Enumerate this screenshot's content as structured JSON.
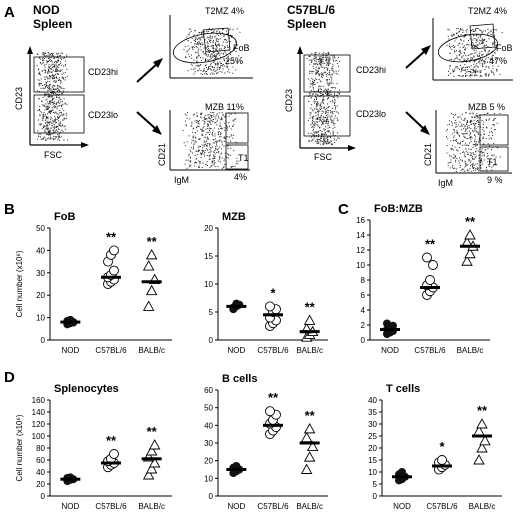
{
  "panels": {
    "A": "A",
    "B": "B",
    "C": "C",
    "D": "D"
  },
  "flow": [
    {
      "title1": "NOD",
      "title2": "Spleen",
      "gate_hi": "CD23hi",
      "gate_lo": "CD23lo",
      "x_axis": "FSC",
      "y_axis": "CD23",
      "top_plot": {
        "label1": "T2MZ 4%",
        "label2": "FoB",
        "label3": "25%"
      },
      "bottom_plot": {
        "label1": "MZB 11%",
        "label2": "T1",
        "label3": "4%",
        "x_axis": "IgM",
        "y_axis": "CD21"
      }
    },
    {
      "title1": "C57BL/6",
      "title2": "Spleen",
      "gate_hi": "CD23hi",
      "gate_lo": "CD23lo",
      "x_axis": "FSC",
      "y_axis": "CD23",
      "top_plot": {
        "label1": "T2MZ 4%",
        "label2": "FoB",
        "label3": "47%"
      },
      "bottom_plot": {
        "label1": "MZB 5 %",
        "label2": "T1",
        "label3": "9 %",
        "x_axis": "IgM",
        "y_axis": "CD21"
      }
    }
  ],
  "chart_data": [
    {
      "type": "scatter",
      "panel": "B",
      "title": "FoB",
      "ylabel": "Cell number (x10⁶)",
      "categories": [
        "NOD",
        "C57BL/6",
        "BALB/c"
      ],
      "ylim": [
        0,
        50
      ],
      "yticks": [
        0,
        10,
        20,
        30,
        40,
        50
      ],
      "means": [
        8,
        28,
        26
      ],
      "points": [
        [
          7,
          7.5,
          8,
          8.5,
          9,
          7.8
        ],
        [
          25,
          26,
          27,
          28,
          29,
          31,
          35,
          38,
          40
        ],
        [
          15,
          22,
          27,
          33,
          38
        ]
      ],
      "markers": [
        "filled",
        "circle",
        "triangle"
      ],
      "significance": [
        "",
        "**",
        "**"
      ]
    },
    {
      "type": "scatter",
      "panel": "B",
      "title": "MZB",
      "categories": [
        "NOD",
        "C57BL/6",
        "BALB/c"
      ],
      "ylim": [
        0,
        20
      ],
      "yticks": [
        0,
        5,
        10,
        15,
        20
      ],
      "means": [
        6,
        4.5,
        1.5
      ],
      "points": [
        [
          5.5,
          6,
          6.3,
          5.8,
          6.5
        ],
        [
          2.5,
          3,
          3.5,
          4,
          5,
          5.5,
          6
        ],
        [
          0.5,
          1,
          1.5,
          2,
          3.5
        ]
      ],
      "markers": [
        "filled",
        "circle",
        "triangle"
      ],
      "significance": [
        "",
        "*",
        "**"
      ]
    },
    {
      "type": "scatter",
      "panel": "C",
      "title": "FoB:MZB",
      "categories": [
        "NOD",
        "C57BL/6",
        "BALB/c"
      ],
      "ylim": [
        0,
        16
      ],
      "yticks": [
        0,
        2,
        4,
        6,
        8,
        10,
        12,
        14,
        16
      ],
      "means": [
        1.4,
        7,
        12.5
      ],
      "points": [
        [
          0.8,
          1,
          1.2,
          1.4,
          1.6,
          1.9,
          2.2
        ],
        [
          6,
          6.5,
          7,
          7.3,
          8,
          10,
          11
        ],
        [
          10.5,
          11.5,
          12.5,
          13,
          14
        ]
      ],
      "markers": [
        "filled",
        "circle",
        "triangle"
      ],
      "significance": [
        "",
        "**",
        "**"
      ]
    },
    {
      "type": "scatter",
      "panel": "D",
      "title": "Splenocytes",
      "ylabel": "Cell number (x10⁶)",
      "categories": [
        "NOD",
        "C57BL/6",
        "BALB/c"
      ],
      "ylim": [
        0,
        160
      ],
      "yticks": [
        0,
        20,
        40,
        60,
        80,
        100,
        120,
        140,
        160
      ],
      "means": [
        28,
        55,
        62
      ],
      "points": [
        [
          25,
          27,
          28,
          30,
          31
        ],
        [
          48,
          52,
          55,
          58,
          62,
          70
        ],
        [
          35,
          45,
          55,
          65,
          75,
          85
        ]
      ],
      "markers": [
        "filled",
        "circle",
        "triangle"
      ],
      "significance": [
        "",
        "**",
        "**"
      ]
    },
    {
      "type": "scatter",
      "panel": "D",
      "title": "B cells",
      "categories": [
        "NOD",
        "C57BL/6",
        "BALB/c"
      ],
      "ylim": [
        0,
        60
      ],
      "yticks": [
        0,
        10,
        20,
        30,
        40,
        50,
        60
      ],
      "means": [
        15,
        40,
        30
      ],
      "points": [
        [
          13,
          14,
          15,
          16,
          17
        ],
        [
          35,
          37,
          39,
          41,
          43,
          46,
          48
        ],
        [
          15,
          22,
          28,
          33,
          38
        ]
      ],
      "markers": [
        "filled",
        "circle",
        "triangle"
      ],
      "significance": [
        "",
        "**",
        "**"
      ]
    },
    {
      "type": "scatter",
      "panel": "D",
      "title": "T cells",
      "categories": [
        "NOD",
        "C57BL/6",
        "BALB/c"
      ],
      "ylim": [
        0,
        40
      ],
      "yticks": [
        0,
        5,
        10,
        15,
        20,
        25,
        30,
        35,
        40
      ],
      "means": [
        8,
        12.5,
        25
      ],
      "points": [
        [
          6.5,
          7,
          8,
          9,
          10
        ],
        [
          11,
          12,
          13,
          14,
          15
        ],
        [
          15,
          20,
          23,
          27,
          30
        ]
      ],
      "markers": [
        "filled",
        "circle",
        "triangle"
      ],
      "significance": [
        "",
        "*",
        "**"
      ]
    }
  ]
}
